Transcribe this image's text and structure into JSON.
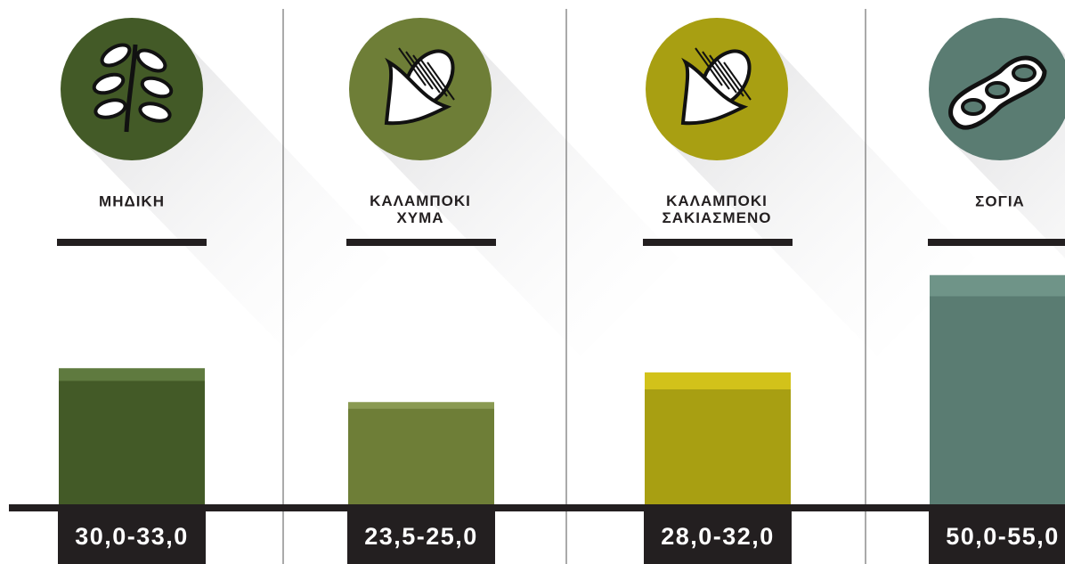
{
  "chart_data": {
    "type": "bar",
    "categories": [
      "ΜΗΔΙΚΗ",
      "ΚΑΛΑΜΠΟΚΙ\nΧΥΜΑ",
      "ΚΑΛΑΜΠΟΚΙ\nΣΑΚΙΑΣΜΕΝΟ",
      "ΣΟΓΙΑ"
    ],
    "low": [
      30.0,
      23.5,
      28.0,
      50.0
    ],
    "high": [
      33.0,
      25.0,
      32.0,
      55.0
    ],
    "value_labels": [
      "30,0-33,0",
      "23,5-25,0",
      "28,0-32,0",
      "50,0-55,0"
    ],
    "colors": [
      "#435a27",
      "#6e7e37",
      "#a89f12",
      "#5a7c72"
    ],
    "top_colors": [
      "#5f7a3f",
      "#8a9a52",
      "#d2c21a",
      "#6f9488"
    ],
    "ylim": [
      0,
      60
    ]
  }
}
